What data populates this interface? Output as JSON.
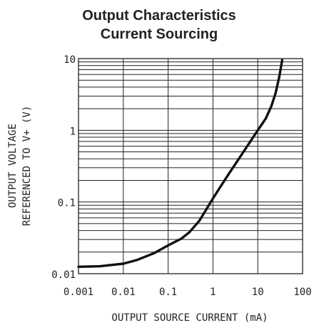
{
  "chart_data": {
    "type": "line",
    "title": [
      "Output Characteristics",
      "Current Sourcing"
    ],
    "xlabel": "OUTPUT SOURCE CURRENT (mA)",
    "ylabel": [
      "OUTPUT VOLTAGE",
      "REFERENCED TO V+ (V)"
    ],
    "x_scale": "log",
    "y_scale": "log",
    "xlim": [
      0.001,
      100
    ],
    "ylim": [
      0.01,
      10
    ],
    "x_ticks": [
      "0.001",
      "0.01",
      "0.1",
      "1",
      "10",
      "100"
    ],
    "y_ticks": [
      "0.01",
      "0.1",
      "1",
      "10"
    ],
    "grid": true,
    "series": [
      {
        "x": [
          0.001,
          0.003,
          0.01,
          0.02,
          0.05,
          0.1,
          0.2,
          0.3,
          0.5,
          1,
          2,
          5,
          10,
          15,
          20,
          25,
          30,
          35
        ],
        "y": [
          0.0125,
          0.0127,
          0.0138,
          0.0155,
          0.0195,
          0.0248,
          0.031,
          0.038,
          0.055,
          0.112,
          0.22,
          0.52,
          1.0,
          1.45,
          2.15,
          3.3,
          5.5,
          9.5
        ]
      }
    ]
  }
}
